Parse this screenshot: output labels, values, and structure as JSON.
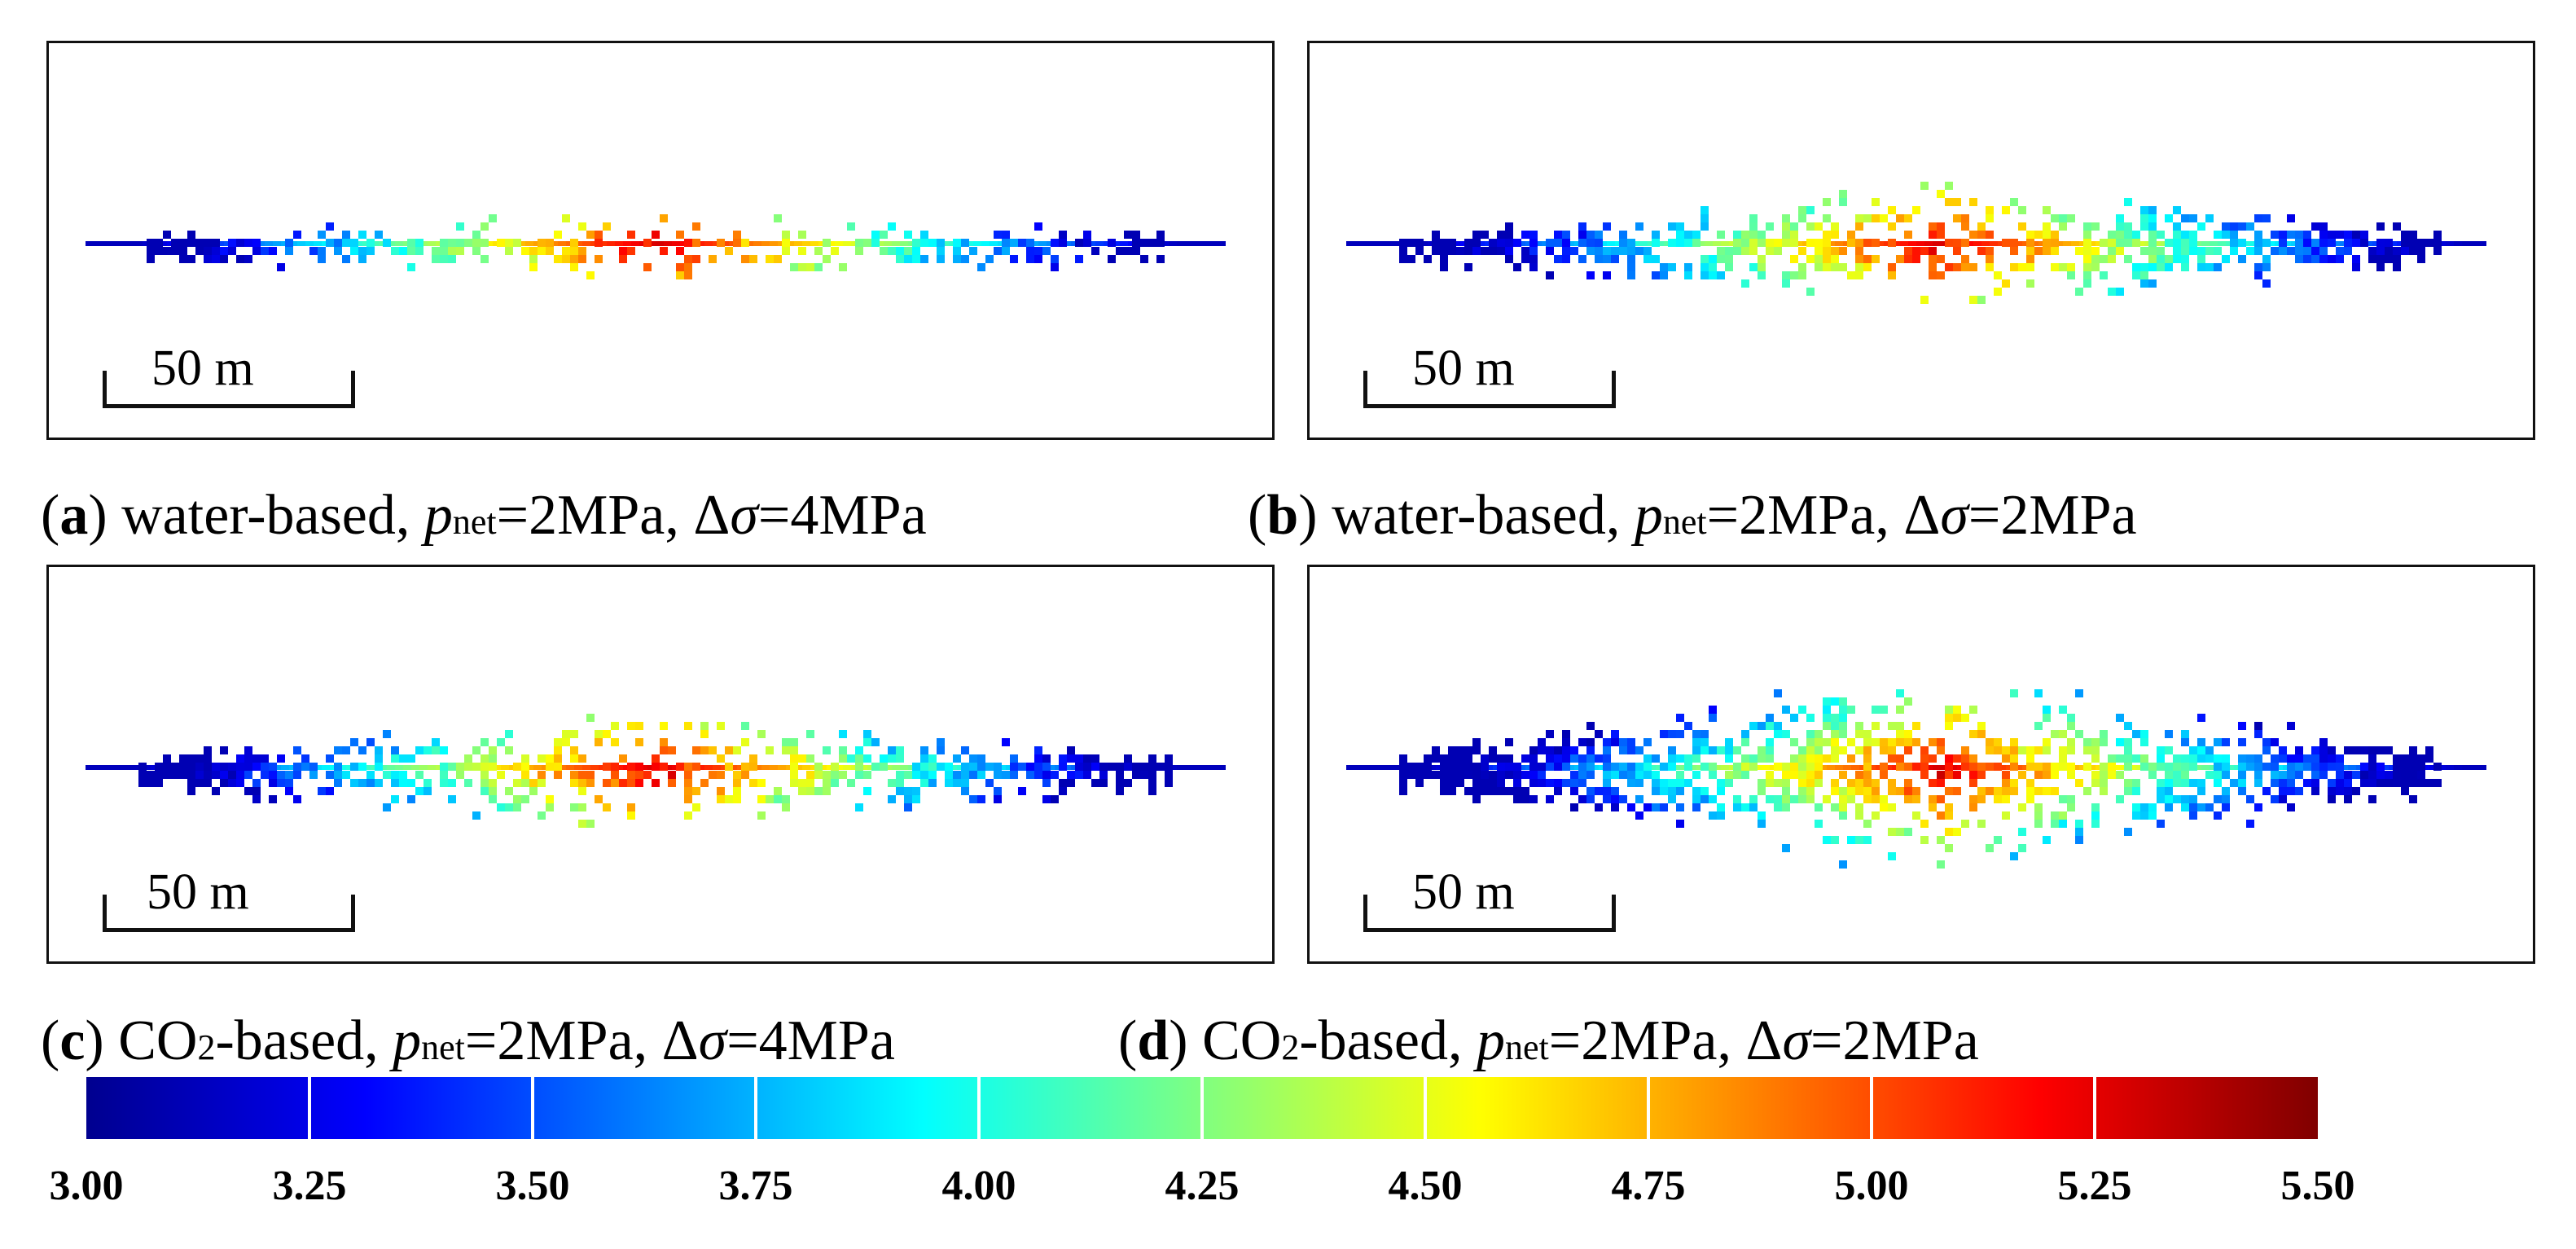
{
  "panels": [
    {
      "id": "a",
      "letter": "a",
      "fluid_prefix": "water",
      "fluid_suffix": "-based, ",
      "pnet_var": "p",
      "pnet_sub": "net",
      "pnet_val": "=2MPa, ",
      "dsigma": "Δσ",
      "dsigma_val": "=4MPa",
      "scale_label": "50 m",
      "spread": 0.35,
      "center": 0.5
    },
    {
      "id": "b",
      "letter": "b",
      "fluid_prefix": "water",
      "fluid_suffix": "-based, ",
      "pnet_var": "p",
      "pnet_sub": "net",
      "pnet_val": "=2MPa, ",
      "dsigma": "Δσ",
      "dsigma_val": "=2MPa",
      "scale_label": "50 m",
      "spread": 0.75,
      "center": 0.52
    },
    {
      "id": "c",
      "letter": "c",
      "fluid_prefix": "CO",
      "fluid_sub": "2",
      "fluid_suffix": "-based, ",
      "pnet_var": "p",
      "pnet_sub": "net",
      "pnet_val": "=2MPa, ",
      "dsigma": "Δσ",
      "dsigma_val": "=4MPa",
      "scale_label": "50 m",
      "spread": 0.7,
      "center": 0.5
    },
    {
      "id": "d",
      "letter": "d",
      "fluid_prefix": "CO",
      "fluid_sub": "2",
      "fluid_suffix": "-based, ",
      "pnet_var": "p",
      "pnet_sub": "net",
      "pnet_val": "=2MPa, ",
      "dsigma": "Δσ",
      "dsigma_val": "=2MPa",
      "scale_label": "50 m",
      "spread": 1.3,
      "center": 0.52
    }
  ],
  "colorbar": {
    "min": 3.0,
    "max": 5.5,
    "labels": [
      "3.00",
      "3.25",
      "3.50",
      "3.75",
      "4.00",
      "4.25",
      "4.50",
      "4.75",
      "5.00",
      "5.25",
      "5.50"
    ],
    "colors": [
      "#00008f",
      "#0000ff",
      "#0080ff",
      "#00ffff",
      "#80ff80",
      "#ffff00",
      "#ff8000",
      "#ff0000",
      "#800000"
    ]
  }
}
